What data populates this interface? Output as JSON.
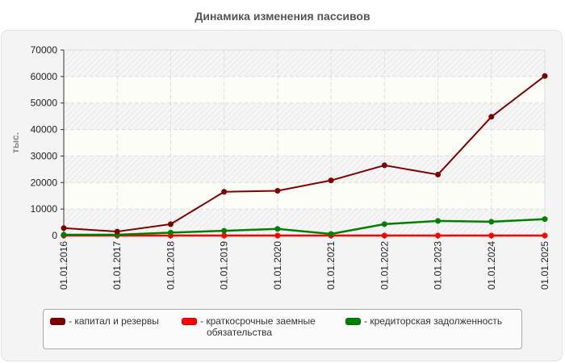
{
  "title": "Динамика изменения пассивов",
  "colors": {
    "capital": "#800000",
    "short_term": "#ff0000",
    "payables": "#008000"
  },
  "legend": {
    "items": [
      {
        "label": "- капитал и резервы",
        "color": "#800000"
      },
      {
        "label_line1": "- краткосрочные заемные",
        "label_line2": "обязательства",
        "color": "#ff0000"
      },
      {
        "label": "- кредиторская задолженность",
        "color": "#008000"
      }
    ]
  },
  "chart_data": {
    "type": "line",
    "title": "Динамика изменения пассивов",
    "xlabel": "",
    "ylabel": "тыс.",
    "ylim": [
      0,
      70000
    ],
    "yticks": [
      0,
      10000,
      20000,
      30000,
      40000,
      50000,
      60000,
      70000
    ],
    "grid": true,
    "legend_position": "bottom",
    "x": [
      "01.01.2016",
      "01.01.2017",
      "01.01.2018",
      "01.01.2019",
      "01.01.2020",
      "01.01.2021",
      "01.01.2022",
      "01.01.2023",
      "01.01.2024",
      "01.01.2025"
    ],
    "series": [
      {
        "name": "капитал и резервы",
        "color": "#800000",
        "values": [
          2800,
          1500,
          4300,
          16500,
          16900,
          20800,
          26500,
          23000,
          44800,
          60200
        ]
      },
      {
        "name": "краткосрочные заемные обязательства",
        "color": "#ff0000",
        "values": [
          0,
          0,
          0,
          0,
          0,
          0,
          0,
          0,
          0,
          0
        ]
      },
      {
        "name": "кредиторская задолженность",
        "color": "#008000",
        "values": [
          300,
          300,
          1100,
          1800,
          2500,
          600,
          4300,
          5500,
          5200,
          6200
        ]
      }
    ]
  }
}
